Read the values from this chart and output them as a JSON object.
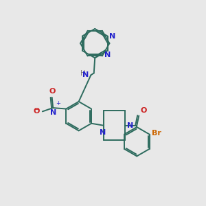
{
  "background_color": "#e8e8e8",
  "bond_color": "#2d6b5e",
  "N_color": "#2222cc",
  "O_color": "#cc2222",
  "Br_color": "#cc6600",
  "H_color": "#777777",
  "line_width": 1.4,
  "figsize": [
    3.0,
    3.0
  ],
  "dpi": 100,
  "xlim": [
    0,
    10
  ],
  "ylim": [
    0,
    10
  ]
}
